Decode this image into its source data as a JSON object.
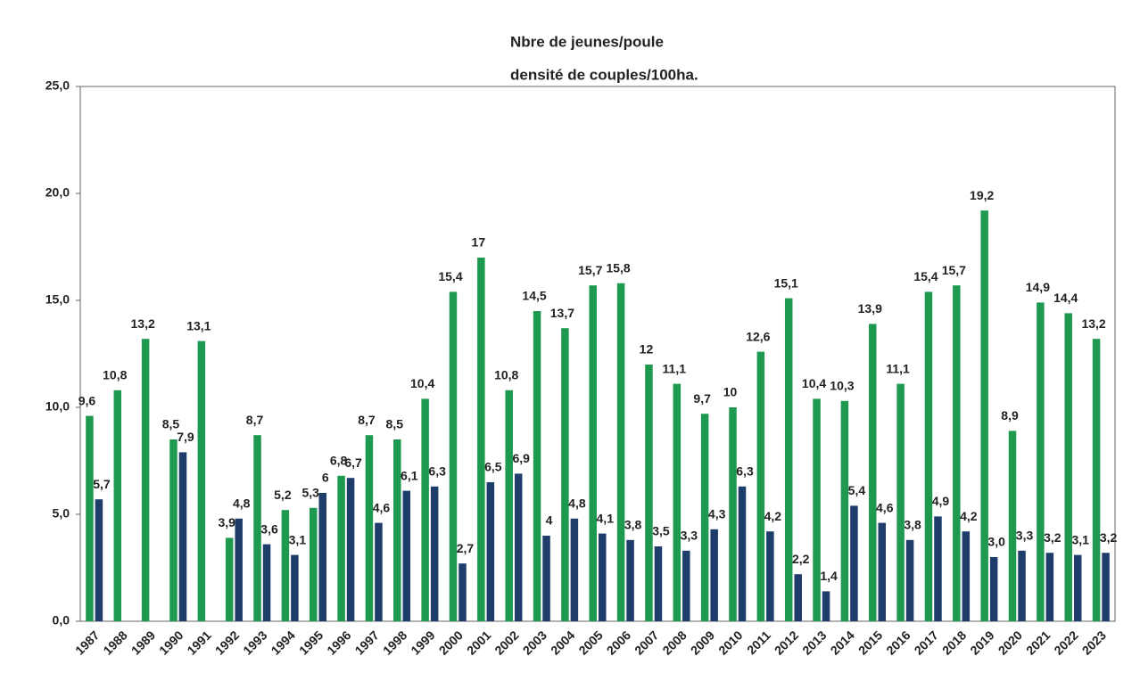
{
  "chart_data": {
    "type": "bar",
    "categories": [
      "1987",
      "1988",
      "1989",
      "1990",
      "1991",
      "1992",
      "1993",
      "1994",
      "1995",
      "1996",
      "1997",
      "1998",
      "1999",
      "2000",
      "2001",
      "2002",
      "2003",
      "2004",
      "2005",
      "2006",
      "2007",
      "2008",
      "2009",
      "2010",
      "2011",
      "2012",
      "2013",
      "2014",
      "2015",
      "2016",
      "2017",
      "2018",
      "2019",
      "2020",
      "2021",
      "2022",
      "2023"
    ],
    "series": [
      {
        "name": "Nbre de jeunes/poule",
        "color": "#1f3d6b",
        "values": [
          5.7,
          null,
          null,
          7.9,
          null,
          4.8,
          3.6,
          3.1,
          6,
          6.7,
          4.6,
          6.1,
          6.3,
          2.7,
          6.5,
          6.9,
          4,
          4.8,
          4.1,
          3.8,
          3.5,
          3.3,
          4.3,
          6.3,
          4.2,
          2.2,
          1.4,
          5.4,
          4.6,
          3.8,
          4.9,
          4.2,
          3.0,
          3.3,
          3.2,
          3.1,
          3.2
        ],
        "value_labels": [
          "5,7",
          null,
          null,
          "7,9",
          null,
          "4,8",
          "3,6",
          "3,1",
          "6",
          "6,7",
          "4,6",
          "6,1",
          "6,3",
          "2,7",
          "6,5",
          "6,9",
          "4",
          "4,8",
          "4,1",
          "3,8",
          "3,5",
          "3,3",
          "4,3",
          "6,3",
          "4,2",
          "2,2",
          "1,4",
          "5,4",
          "4,6",
          "3,8",
          "4,9",
          "4,2",
          "3,0",
          "3,3",
          "3,2",
          "3,1",
          "3,2"
        ]
      },
      {
        "name": "densité de couples/100ha.",
        "color": "#1e9a50",
        "values": [
          9.6,
          10.8,
          13.2,
          8.5,
          13.1,
          3.9,
          8.7,
          5.2,
          5.3,
          6.8,
          8.7,
          8.5,
          10.4,
          15.4,
          17,
          10.8,
          14.5,
          13.7,
          15.7,
          15.8,
          12,
          11.1,
          9.7,
          10,
          12.6,
          15.1,
          10.4,
          10.3,
          13.9,
          11.1,
          15.4,
          15.7,
          19.2,
          8.9,
          14.9,
          14.4,
          13.2
        ],
        "value_labels": [
          "9,6",
          "10,8",
          "13,2",
          "8,5",
          "13,1",
          "3,9",
          "8,7",
          "5,2",
          "5,3",
          "6,8",
          "8,7",
          "8,5",
          "10,4",
          "15,4",
          "17",
          "10,8",
          "14,5",
          "13,7",
          "15,7",
          "15,8",
          "12",
          "11,1",
          "9,7",
          "10",
          "12,6",
          "15,1",
          "10,4",
          "10,3",
          "13,9",
          "11,1",
          "15,4",
          "15,7",
          "19,2",
          "8,9",
          "14,9",
          "14,4",
          "13,2"
        ]
      }
    ],
    "ylim": [
      0,
      25
    ],
    "yticks": [
      {
        "value": 0,
        "label": "0,0"
      },
      {
        "value": 5,
        "label": "5,0"
      },
      {
        "value": 10,
        "label": "10,0"
      },
      {
        "value": 15,
        "label": "15,0"
      },
      {
        "value": 20,
        "label": "20,0"
      },
      {
        "value": 25,
        "label": "25,0"
      }
    ]
  }
}
